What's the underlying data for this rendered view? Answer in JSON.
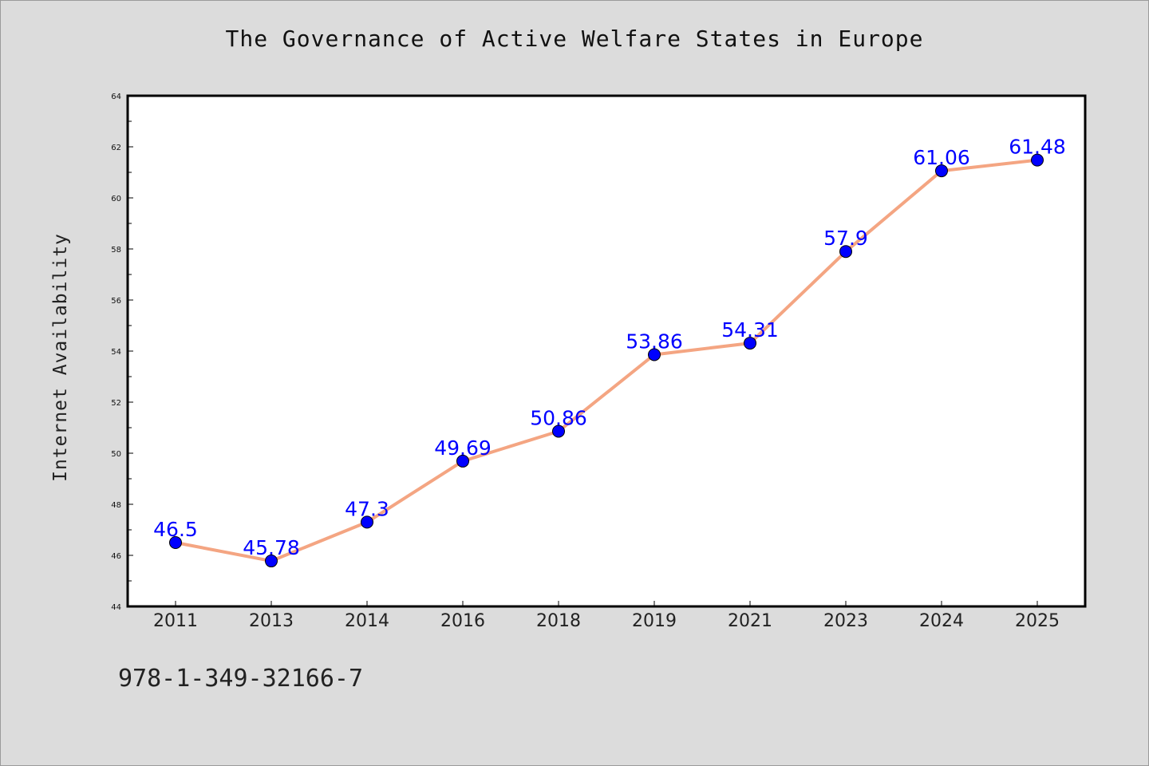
{
  "chart_data": {
    "type": "line",
    "title": "The Governance of Active Welfare States in Europe",
    "xlabel": "",
    "ylabel": "Internet Availability",
    "categories": [
      "2011",
      "2013",
      "2014",
      "2016",
      "2018",
      "2019",
      "2021",
      "2023",
      "2024",
      "2025"
    ],
    "series": [
      {
        "values": [
          46.5,
          45.78,
          47.3,
          49.69,
          50.86,
          53.86,
          54.31,
          57.9,
          61.06,
          61.48
        ],
        "data_labels": [
          "46.5",
          "45.78",
          "47.3",
          "49.69",
          "50.86",
          "53.86",
          "54.31",
          "57.9",
          "61.06",
          "61.48"
        ]
      }
    ],
    "ylim": [
      44,
      64
    ],
    "yticks": [
      "44",
      "46",
      "48",
      "50",
      "52",
      "54",
      "56",
      "58",
      "60",
      "62",
      "64"
    ],
    "grid": false,
    "legend": "none",
    "colors": {
      "line": "#f4a582",
      "marker": "#0000ff",
      "data_label": "#0000ff",
      "background": "#dcdcdc",
      "plot_background": "#ffffff"
    }
  },
  "footer": {
    "isbn": "978-1-349-32166-7"
  }
}
